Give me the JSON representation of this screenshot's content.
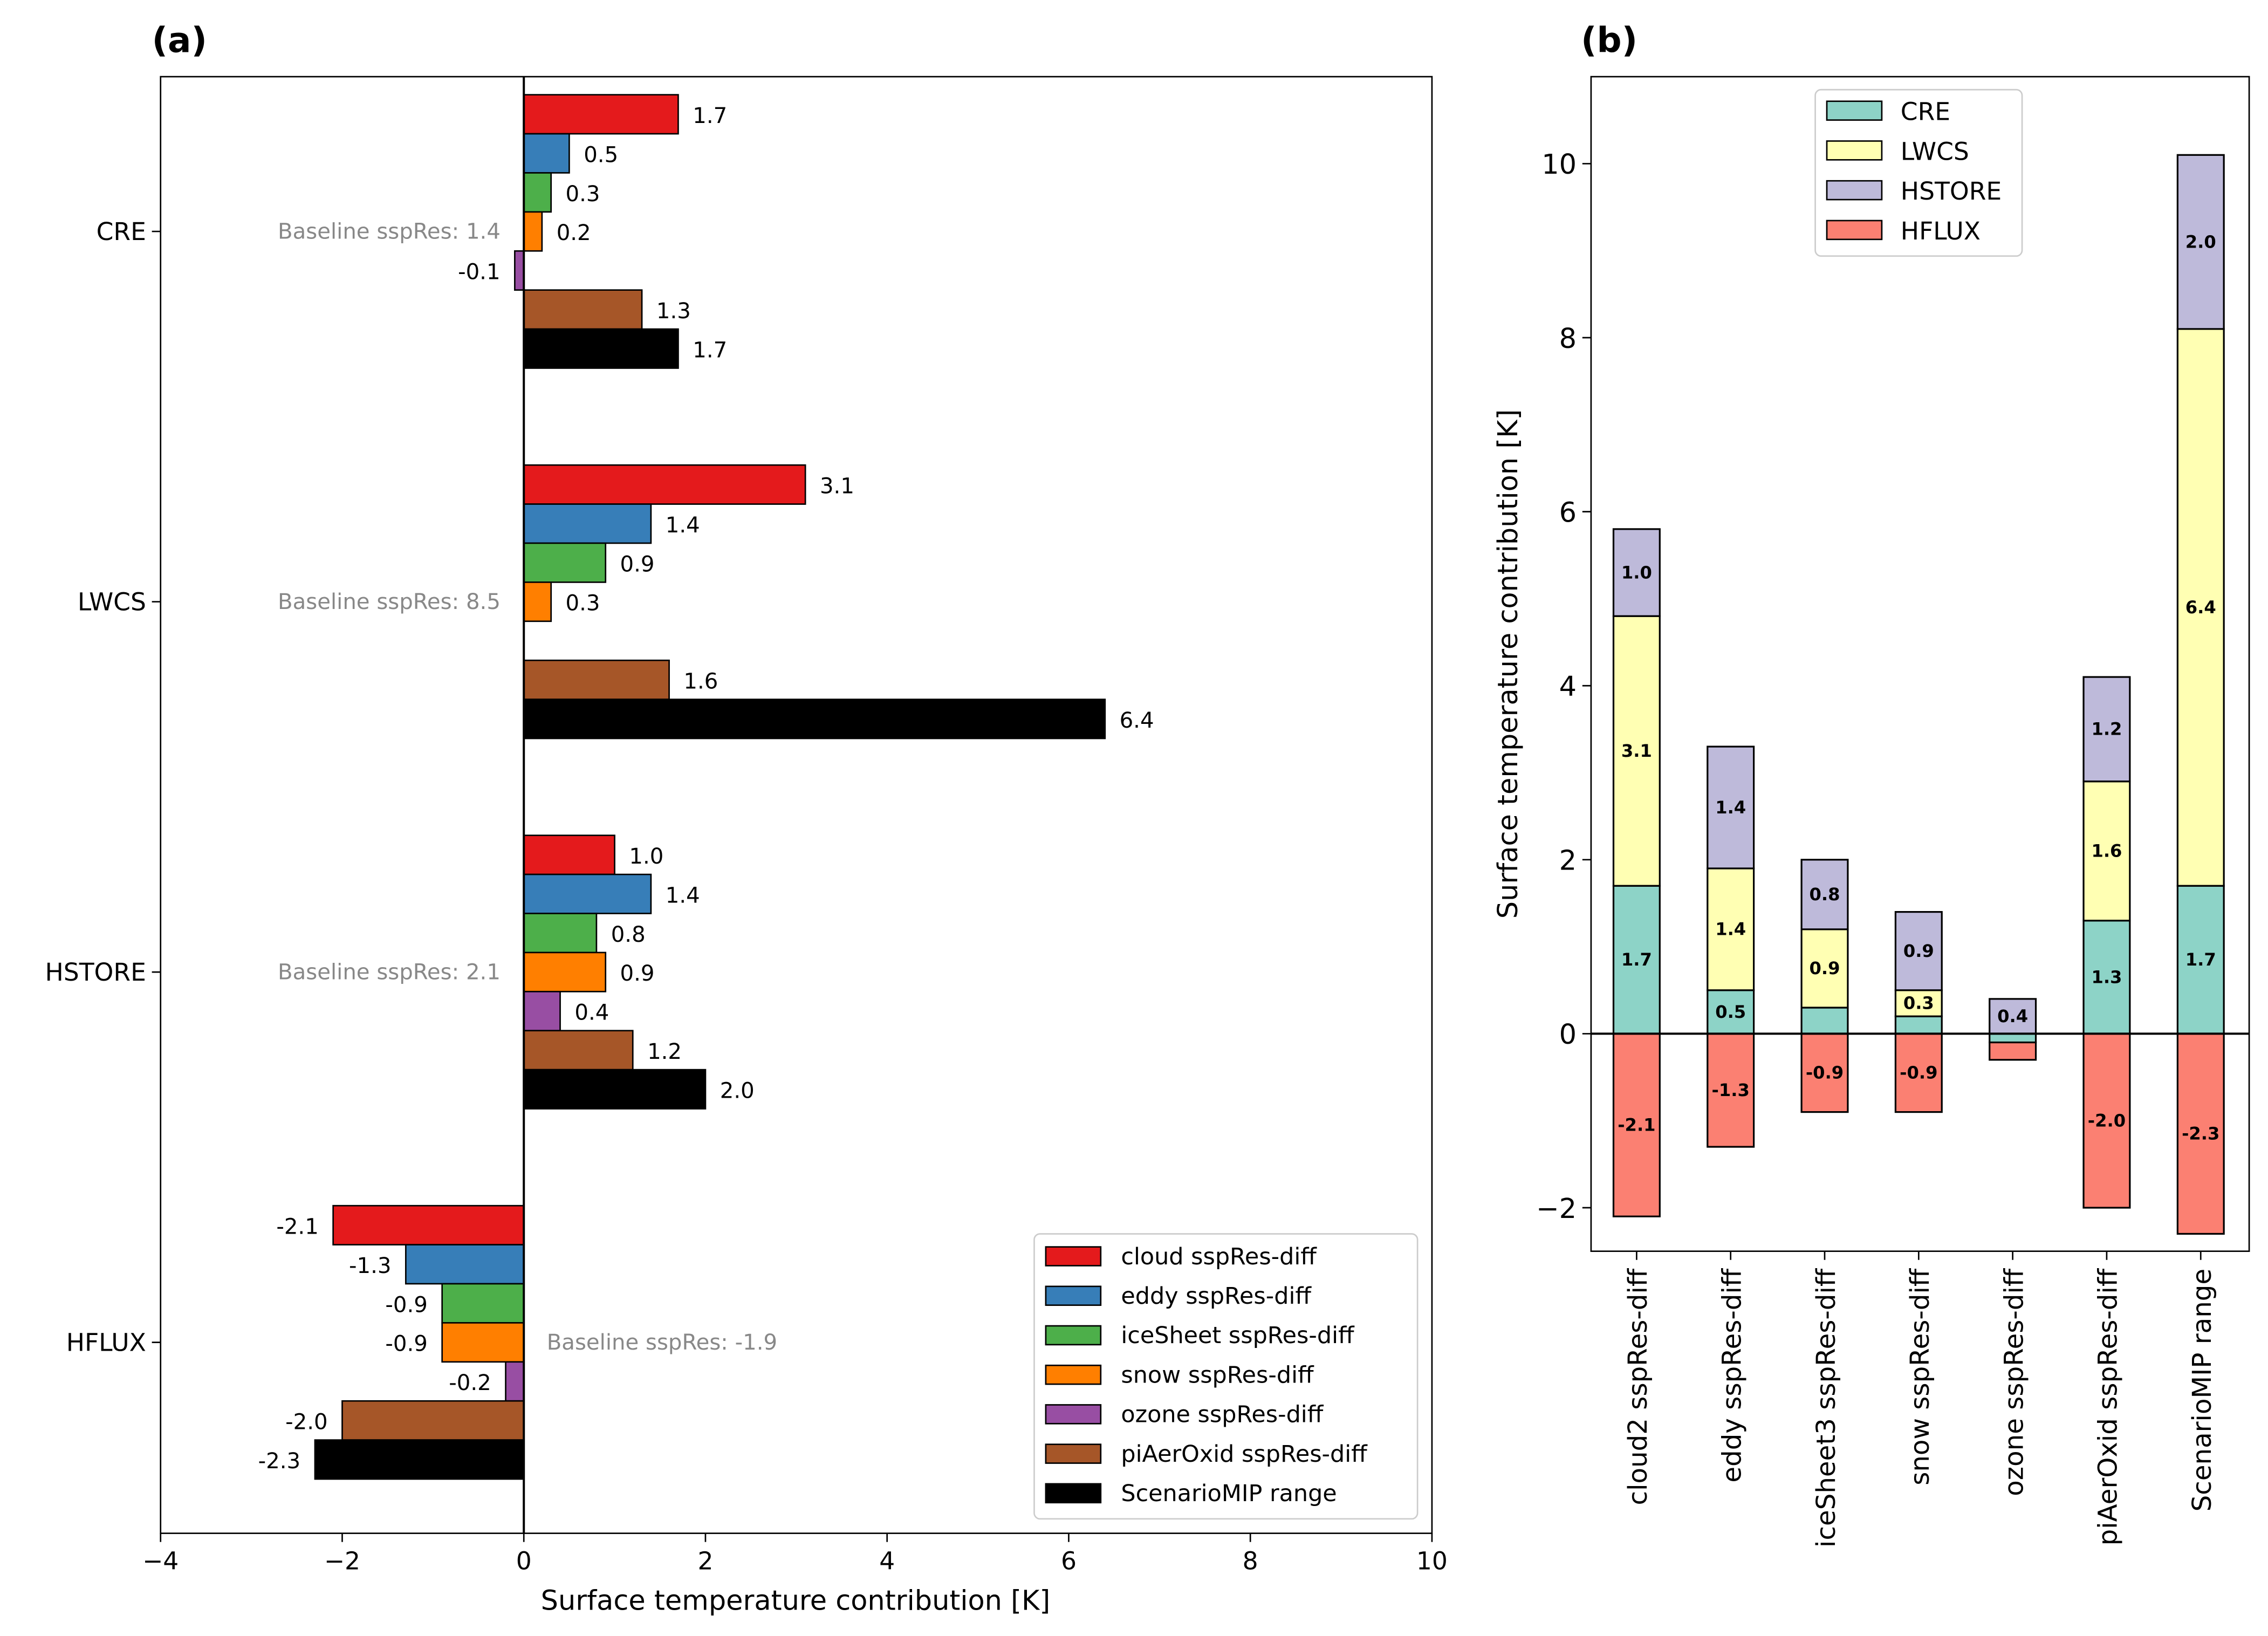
{
  "chart_data": [
    {
      "panel_label": "(a)",
      "type": "bar",
      "orientation": "horizontal",
      "categories": [
        "CRE",
        "LWCS",
        "HSTORE",
        "HFLUX"
      ],
      "series": [
        {
          "name": "cloud sspRes-diff",
          "color": "#e41a1c",
          "values": [
            1.7,
            3.1,
            1.0,
            -2.1
          ]
        },
        {
          "name": "eddy sspRes-diff",
          "color": "#377eb8",
          "values": [
            0.5,
            1.4,
            1.4,
            -1.3
          ]
        },
        {
          "name": "iceSheet sspRes-diff",
          "color": "#4daf4a",
          "values": [
            0.3,
            0.9,
            0.8,
            -0.9
          ]
        },
        {
          "name": "snow sspRes-diff",
          "color": "#ff7f00",
          "values": [
            0.2,
            0.3,
            0.9,
            -0.9
          ]
        },
        {
          "name": "ozone sspRes-diff",
          "color": "#984ea3",
          "values": [
            -0.1,
            null,
            0.4,
            -0.2
          ]
        },
        {
          "name": "piAerOxid sspRes-diff",
          "color": "#a65628",
          "values": [
            1.3,
            1.6,
            1.2,
            -2.0
          ]
        },
        {
          "name": "ScenarioMIP range",
          "color": "#000000",
          "values": [
            1.7,
            6.4,
            2.0,
            -2.3
          ]
        }
      ],
      "annotations": [
        "Baseline sspRes: 1.4",
        "Baseline sspRes: 8.5",
        "Baseline sspRes: 2.1",
        "Baseline sspRes: -1.9"
      ],
      "xlabel": "Surface temperature contribution [K]",
      "xlim": [
        -4,
        10
      ],
      "xticks": [
        "−4",
        "−2",
        "0",
        "2",
        "4",
        "6",
        "8",
        "10"
      ],
      "grid": false,
      "legend": "bottom-right"
    },
    {
      "panel_label": "(b)",
      "type": "bar",
      "stacked": true,
      "categories": [
        "cloud2 sspRes-diff",
        "eddy sspRes-diff",
        "iceSheet3 sspRes-diff",
        "snow sspRes-diff",
        "ozone sspRes-diff",
        "piAerOxid sspRes-diff",
        "ScenarioMIP range"
      ],
      "series": [
        {
          "name": "CRE",
          "color": "#8dd3c7",
          "values": [
            1.7,
            0.5,
            0.3,
            0.2,
            -0.1,
            1.3,
            1.7
          ],
          "labels": [
            "1.7",
            "0.5",
            null,
            null,
            null,
            "1.3",
            "1.7"
          ]
        },
        {
          "name": "LWCS",
          "color": "#ffffb3",
          "values": [
            3.1,
            1.4,
            0.9,
            0.3,
            0.0,
            1.6,
            6.4
          ],
          "labels": [
            "3.1",
            "1.4",
            "0.9",
            "0.3",
            null,
            "1.6",
            "6.4"
          ]
        },
        {
          "name": "HSTORE",
          "color": "#bebada",
          "values": [
            1.0,
            1.4,
            0.8,
            0.9,
            0.4,
            1.2,
            2.0
          ],
          "labels": [
            "1.0",
            "1.4",
            "0.8",
            "0.9",
            "0.4",
            "1.2",
            "2.0"
          ]
        },
        {
          "name": "HFLUX",
          "color": "#fb8072",
          "values": [
            -2.1,
            -1.3,
            -0.9,
            -0.9,
            -0.2,
            -2.0,
            -2.3
          ],
          "labels": [
            "-2.1",
            "-1.3",
            "-0.9",
            "-0.9",
            null,
            "-2.0",
            "-2.3"
          ]
        }
      ],
      "ylabel": "Surface temperature contribution [K]",
      "ylim": [
        -2.5,
        11
      ],
      "yticks": [
        "−2",
        "0",
        "2",
        "4",
        "6",
        "8",
        "10"
      ],
      "grid": false,
      "legend": "top-center"
    }
  ]
}
